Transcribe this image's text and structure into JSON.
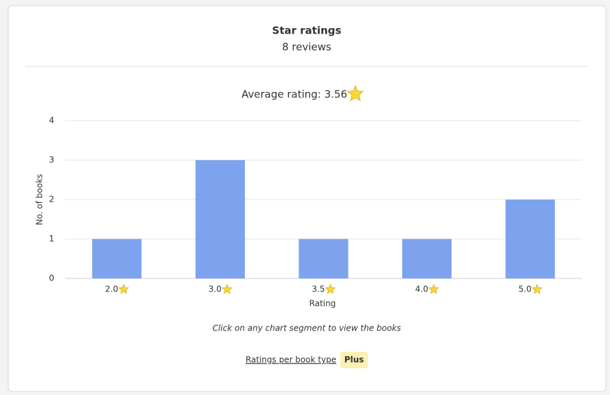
{
  "header": {
    "title": "Star ratings",
    "subtitle": "8 reviews"
  },
  "chart_data": {
    "type": "bar",
    "title": "Average rating: 3.56",
    "x_label": "Rating",
    "y_label": "No. of books",
    "categories": [
      "2.0",
      "3.0",
      "3.5",
      "4.0",
      "5.0"
    ],
    "values": [
      1,
      3,
      1,
      1,
      2
    ],
    "color": "#7ea3ee",
    "ylim": [
      0,
      4
    ],
    "yticks": [
      0,
      1,
      2,
      3,
      4
    ],
    "grid": true
  },
  "note": "Click on any chart segment to view the books",
  "footer": {
    "link": "Ratings per book type",
    "badge": "Plus"
  }
}
